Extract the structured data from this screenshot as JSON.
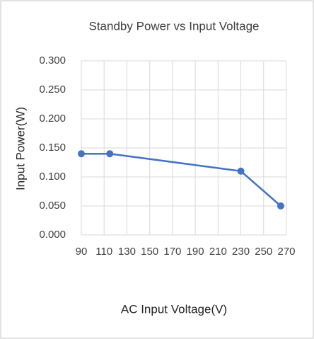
{
  "chart_data": {
    "type": "line",
    "title": "Standby Power vs Input Voltage",
    "x_label": "AC Input Voltage(V)",
    "y_label": "Input Power(W)",
    "x": [
      90,
      115,
      230,
      265
    ],
    "series": [
      {
        "name": "Input Power",
        "color": "#4472c4",
        "values": [
          0.14,
          0.14,
          0.11,
          0.05
        ]
      }
    ],
    "xlim": [
      90,
      270
    ],
    "xticks": [
      90,
      110,
      130,
      150,
      170,
      190,
      210,
      230,
      250,
      270
    ],
    "ylim": [
      0,
      0.3
    ],
    "yticks": [
      {
        "value": 0,
        "label": "0.000"
      },
      {
        "value": 0.05,
        "label": "0.050"
      },
      {
        "value": 0.1,
        "label": "0.100"
      },
      {
        "value": 0.15,
        "label": "0.150"
      },
      {
        "value": 0.2,
        "label": "0.200"
      },
      {
        "value": 0.25,
        "label": "0.250"
      },
      {
        "value": 0.3,
        "label": "0.300"
      }
    ],
    "grid": true
  }
}
